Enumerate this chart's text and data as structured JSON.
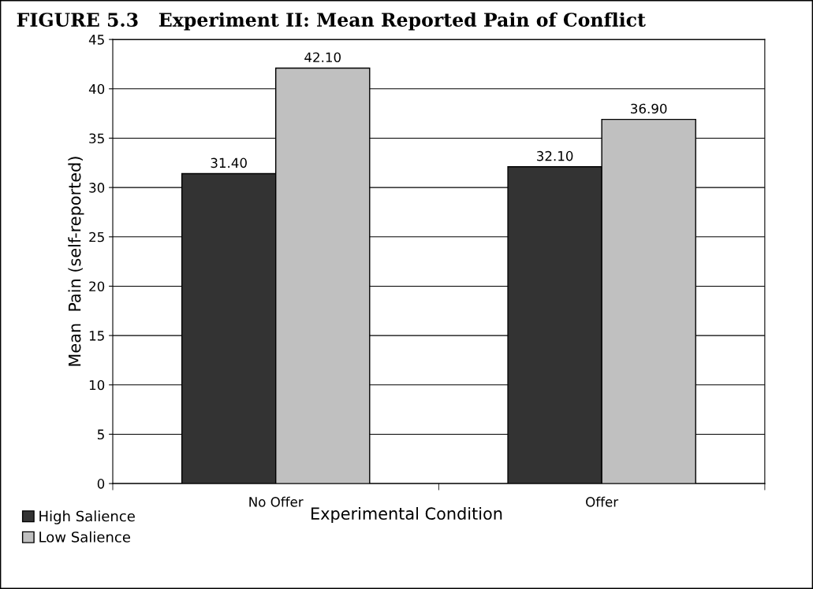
{
  "chart_data": {
    "type": "bar",
    "title": "FIGURE 5.3   Experiment II: Mean Reported Pain of Conflict",
    "xlabel": "Experimental Condition",
    "ylabel": "Mean  Pain (self-reported)",
    "categories": [
      "No Offer",
      "Offer"
    ],
    "series": [
      {
        "name": "High Salience",
        "color": "#333333",
        "values": [
          31.4,
          32.1
        ],
        "value_labels": [
          "31.40",
          "32.10"
        ]
      },
      {
        "name": "Low Salience",
        "color": "#c0c0c0",
        "values": [
          42.1,
          36.9
        ],
        "value_labels": [
          "42.10",
          "36.90"
        ]
      }
    ],
    "ylim": [
      0,
      45
    ],
    "yticks": [
      0,
      5,
      10,
      15,
      20,
      25,
      30,
      35,
      40,
      45
    ],
    "grid": "y",
    "legend": "bottom left"
  }
}
